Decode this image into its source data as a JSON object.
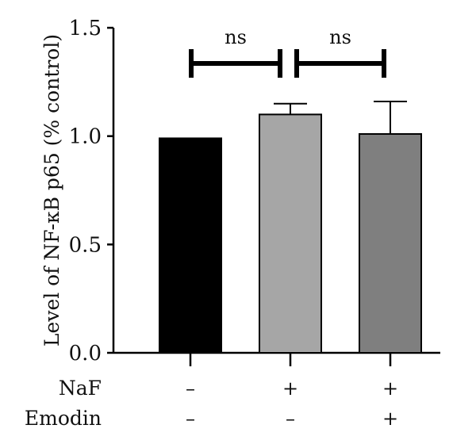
{
  "chart_data": {
    "type": "bar",
    "ylabel": "Level of NF-κB p65 (% control)",
    "ylim": [
      0,
      1.5
    ],
    "yticks": [
      {
        "value": 0.0,
        "label": "0.0"
      },
      {
        "value": 0.5,
        "label": "0.5"
      },
      {
        "value": 1.0,
        "label": "1.0"
      },
      {
        "value": 1.5,
        "label": "1.5"
      }
    ],
    "bars": [
      {
        "value": 0.99,
        "error": 0,
        "color": "#000000"
      },
      {
        "value": 1.1,
        "error": 0.05,
        "color": "#a6a6a6"
      },
      {
        "value": 1.01,
        "error": 0.15,
        "color": "#7f7f7f"
      }
    ],
    "conditions": [
      {
        "label": "NaF",
        "values": [
          "–",
          "+",
          "+"
        ]
      },
      {
        "label": "Emodin",
        "values": [
          "–",
          "–",
          "+"
        ]
      }
    ],
    "significance": [
      {
        "from": 0,
        "to": 1,
        "label": "ns"
      },
      {
        "from": 1,
        "to": 2,
        "label": "ns"
      }
    ]
  }
}
